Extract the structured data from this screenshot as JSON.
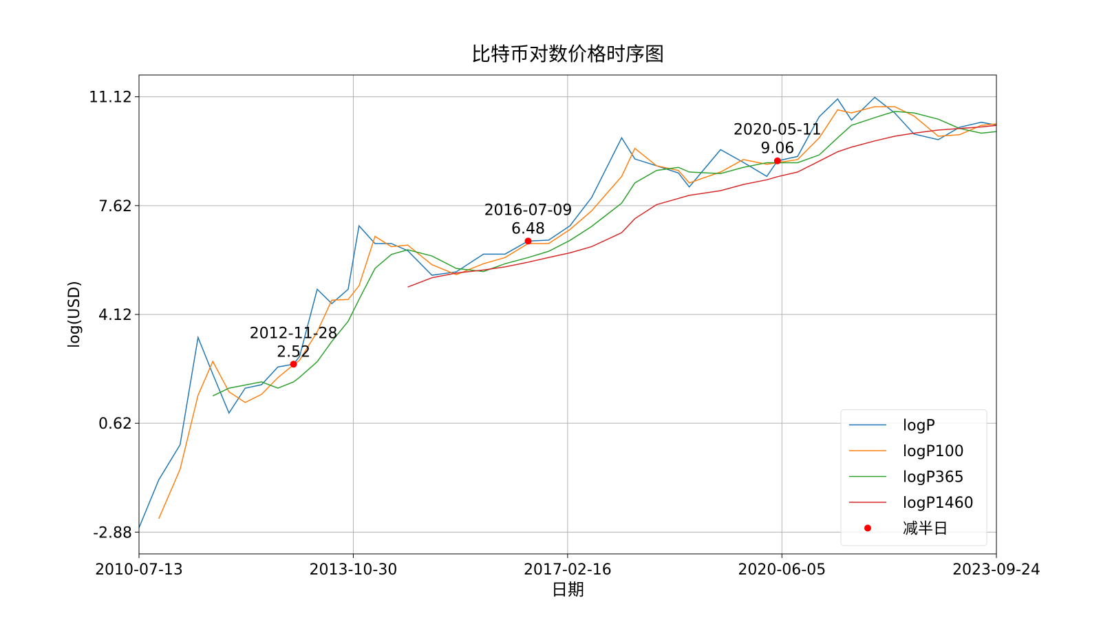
{
  "chart_data": {
    "type": "line",
    "title": "比特币对数价格时序图",
    "xlabel": "日期",
    "ylabel": "log(USD)",
    "xlim": [
      "2010-07-13",
      "2023-09-24"
    ],
    "xticks": [
      "2010-07-13",
      "2013-10-30",
      "2017-02-16",
      "2020-06-05",
      "2023-09-24"
    ],
    "ylim": [
      -3.58,
      11.82
    ],
    "yticks": [
      -2.88,
      0.62,
      4.12,
      7.62,
      11.12
    ],
    "grid": true,
    "legend": "lower right",
    "x": [
      "2010-07-13",
      "2010-11-01",
      "2011-03-01",
      "2011-06-10",
      "2011-09-01",
      "2011-12-01",
      "2012-03-01",
      "2012-06-01",
      "2012-09-01",
      "2012-11-28",
      "2013-01-01",
      "2013-04-10",
      "2013-07-01",
      "2013-10-01",
      "2013-12-01",
      "2014-03-01",
      "2014-06-01",
      "2014-09-01",
      "2015-01-15",
      "2015-06-01",
      "2015-11-01",
      "2016-03-01",
      "2016-07-09",
      "2016-11-01",
      "2017-03-01",
      "2017-07-01",
      "2017-12-17",
      "2018-03-01",
      "2018-07-01",
      "2018-11-01",
      "2019-01-01",
      "2019-06-26",
      "2019-11-01",
      "2020-03-12",
      "2020-05-11",
      "2020-09-01",
      "2021-01-01",
      "2021-04-14",
      "2021-07-01",
      "2021-11-09",
      "2022-03-01",
      "2022-06-18",
      "2022-11-01",
      "2023-03-01",
      "2023-07-01",
      "2023-09-24"
    ],
    "series": [
      {
        "name": "logP",
        "color": "#1f77b4",
        "values": [
          -2.74,
          -1.2,
          -0.07,
          3.38,
          2.2,
          0.95,
          1.75,
          1.86,
          2.43,
          2.52,
          2.77,
          4.93,
          4.47,
          4.93,
          6.97,
          6.4,
          6.4,
          6.17,
          5.38,
          5.49,
          6.06,
          6.06,
          6.48,
          6.51,
          6.97,
          7.88,
          9.8,
          9.12,
          8.9,
          8.67,
          8.22,
          9.42,
          9.01,
          8.56,
          9.06,
          9.2,
          10.48,
          11.05,
          10.37,
          11.1,
          10.6,
          9.92,
          9.74,
          10.14,
          10.3,
          10.21
        ]
      },
      {
        "name": "logP100",
        "color": "#ff7f0e",
        "values": [
          null,
          -2.45,
          -0.86,
          1.52,
          2.61,
          1.63,
          1.29,
          1.55,
          2.09,
          2.5,
          2.65,
          3.56,
          4.58,
          4.6,
          5.04,
          6.63,
          6.3,
          6.35,
          5.72,
          5.4,
          5.75,
          5.95,
          6.4,
          6.4,
          6.85,
          7.45,
          8.56,
          9.46,
          8.9,
          8.75,
          8.35,
          8.7,
          9.1,
          8.95,
          9.0,
          9.1,
          9.8,
          10.7,
          10.6,
          10.8,
          10.8,
          10.5,
          9.85,
          9.9,
          10.2,
          10.25
        ]
      },
      {
        "name": "logP365",
        "color": "#2ca02c",
        "values": [
          null,
          null,
          null,
          null,
          1.5,
          1.75,
          1.85,
          1.95,
          1.75,
          1.95,
          2.1,
          2.6,
          3.25,
          3.9,
          4.6,
          5.6,
          6.05,
          6.2,
          6.0,
          5.6,
          5.5,
          5.75,
          5.95,
          6.15,
          6.5,
          6.95,
          7.7,
          8.35,
          8.75,
          8.85,
          8.7,
          8.65,
          8.85,
          9.0,
          9.0,
          9.0,
          9.25,
          9.8,
          10.2,
          10.45,
          10.65,
          10.6,
          10.4,
          10.1,
          9.95,
          10.0
        ]
      },
      {
        "name": "logP1460",
        "color": "#d62728",
        "values": [
          null,
          null,
          null,
          null,
          null,
          null,
          null,
          null,
          null,
          null,
          null,
          null,
          null,
          null,
          null,
          null,
          null,
          5.0,
          5.3,
          5.45,
          5.55,
          5.65,
          5.8,
          5.95,
          6.1,
          6.3,
          6.75,
          7.2,
          7.65,
          7.85,
          7.95,
          8.1,
          8.3,
          8.45,
          8.55,
          8.7,
          9.05,
          9.35,
          9.5,
          9.7,
          9.85,
          9.95,
          10.05,
          10.1,
          10.15,
          10.2
        ]
      }
    ],
    "halvings": {
      "name": "减半日",
      "color": "#ff0000",
      "x": [
        "2012-11-28",
        "2016-07-09",
        "2020-05-11"
      ],
      "values": [
        2.52,
        6.48,
        9.06
      ]
    }
  }
}
